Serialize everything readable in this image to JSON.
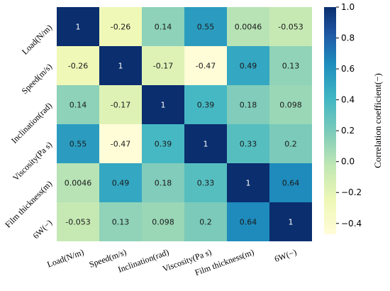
{
  "chart_data": {
    "type": "heatmap",
    "title": "",
    "rows": [
      "Load(N/m)",
      "Speed(m/s)",
      "Inclination(rad)",
      "Viscosity(Pa s)",
      "Film thickness(m)",
      "6W(−)"
    ],
    "columns": [
      "Load(N/m)",
      "Speed(m/s)",
      "Inclination(rad)",
      "Viscosity(Pa s)",
      "Film thickness(m)",
      "6W(−)"
    ],
    "values": [
      [
        1,
        -0.26,
        0.14,
        0.55,
        0.0046,
        -0.053
      ],
      [
        -0.26,
        1,
        -0.17,
        -0.47,
        0.49,
        0.13
      ],
      [
        0.14,
        -0.17,
        1,
        0.39,
        0.18,
        0.098
      ],
      [
        0.55,
        -0.47,
        0.39,
        1,
        0.33,
        0.2
      ],
      [
        0.0046,
        0.49,
        0.18,
        0.33,
        1,
        0.64
      ],
      [
        -0.053,
        0.13,
        0.098,
        0.2,
        0.64,
        1
      ]
    ],
    "cell_labels": [
      [
        "1",
        "-0.26",
        "0.14",
        "0.55",
        "0.0046",
        "-0.053"
      ],
      [
        "-0.26",
        "1",
        "-0.17",
        "-0.47",
        "0.49",
        "0.13"
      ],
      [
        "0.14",
        "-0.17",
        "1",
        "0.39",
        "0.18",
        "0.098"
      ],
      [
        "0.55",
        "-0.47",
        "0.39",
        "1",
        "0.33",
        "0.2"
      ],
      [
        "0.0046",
        "0.49",
        "0.18",
        "0.33",
        "1",
        "0.64"
      ],
      [
        "-0.053",
        "0.13",
        "0.098",
        "0.2",
        "0.64",
        "1"
      ]
    ],
    "colorbar": {
      "label": "Correlation coefficient(−)",
      "range": [
        -0.47,
        1.0
      ],
      "ticks": [
        1.0,
        0.8,
        0.6,
        0.4,
        0.2,
        0.0,
        -0.2,
        -0.4
      ],
      "tick_labels": [
        "1.0",
        "0.8",
        "0.6",
        "0.4",
        "0.2",
        "0.0",
        "−0.2",
        "−0.4"
      ],
      "colormap": "YlGnBu"
    }
  }
}
